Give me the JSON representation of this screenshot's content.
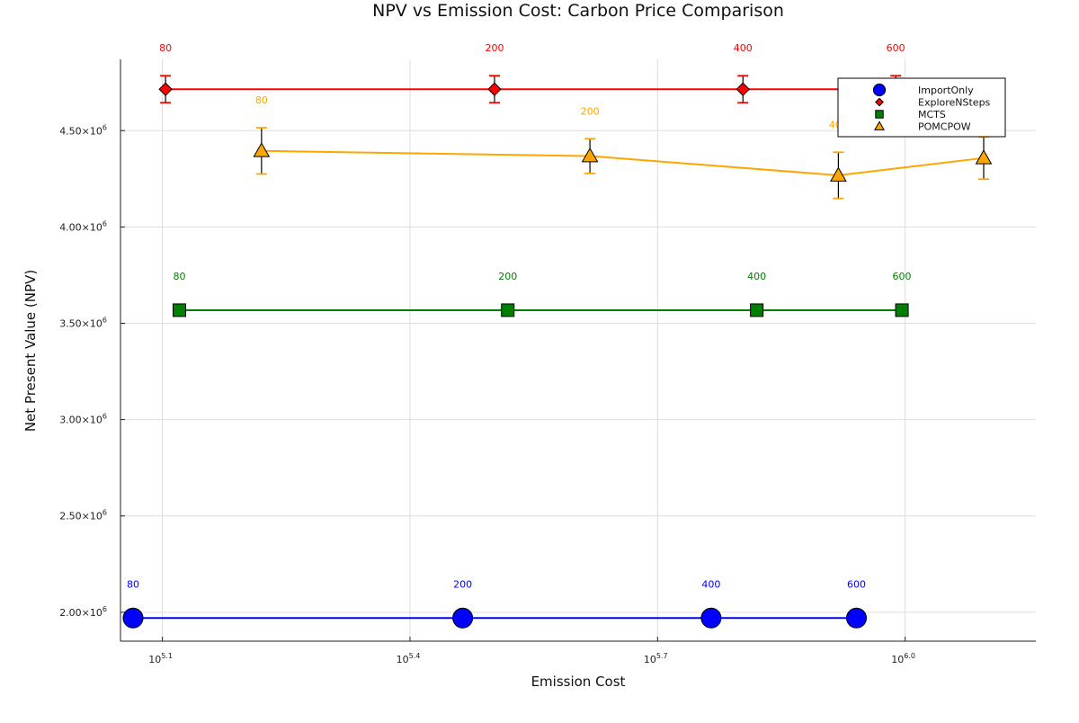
{
  "chart_data": {
    "type": "scatter",
    "title": "NPV vs Emission Cost: Carbon Price Comparison",
    "xlabel": "Emission Cost",
    "ylabel": "Net Present Value (NPV)",
    "x_scale": "log10",
    "xlim": [
      112000,
      1440000
    ],
    "ylim": [
      1850000,
      4870000
    ],
    "x_ticks": [
      {
        "value": 125893,
        "base": "10",
        "exp": "5.1"
      },
      {
        "value": 251189,
        "base": "10",
        "exp": "5.4"
      },
      {
        "value": 501187,
        "base": "10",
        "exp": "5.7"
      },
      {
        "value": 1000000,
        "base": "10",
        "exp": "6.0"
      }
    ],
    "y_ticks": [
      {
        "value": 2000000,
        "mant": "2.00×10",
        "exp": "6"
      },
      {
        "value": 2500000,
        "mant": "2.50×10",
        "exp": "6"
      },
      {
        "value": 3000000,
        "mant": "3.00×10",
        "exp": "6"
      },
      {
        "value": 3500000,
        "mant": "3.50×10",
        "exp": "6"
      },
      {
        "value": 4000000,
        "mant": "4.00×10",
        "exp": "6"
      },
      {
        "value": 4500000,
        "mant": "4.50×10",
        "exp": "6"
      }
    ],
    "grid": true,
    "legend_position": "top-right",
    "series": [
      {
        "name": "ImportOnly",
        "color": "#0000ff",
        "marker": "circle",
        "points": [
          {
            "x": 116000,
            "y": 1970000,
            "err": 0,
            "label": "80"
          },
          {
            "x": 291000,
            "y": 1970000,
            "err": 0,
            "label": "200"
          },
          {
            "x": 582000,
            "y": 1970000,
            "err": 0,
            "label": "400"
          },
          {
            "x": 873000,
            "y": 1970000,
            "err": 0,
            "label": "600"
          }
        ]
      },
      {
        "name": "ExploreNSteps",
        "color": "#ff0000",
        "marker": "diamond",
        "points": [
          {
            "x": 127000,
            "y": 4715000,
            "err": 70000,
            "label": "80"
          },
          {
            "x": 318000,
            "y": 4715000,
            "err": 70000,
            "label": "200"
          },
          {
            "x": 636000,
            "y": 4715000,
            "err": 70000,
            "label": "400"
          },
          {
            "x": 974000,
            "y": 4715000,
            "err": 70000,
            "label": "600"
          }
        ]
      },
      {
        "name": "MCTS",
        "color": "#008000",
        "marker": "square",
        "points": [
          {
            "x": 132000,
            "y": 3568000,
            "err": 0,
            "label": "80"
          },
          {
            "x": 330000,
            "y": 3568000,
            "err": 0,
            "label": "200"
          },
          {
            "x": 661000,
            "y": 3568000,
            "err": 0,
            "label": "400"
          },
          {
            "x": 991000,
            "y": 3568000,
            "err": 0,
            "label": "600"
          }
        ]
      },
      {
        "name": "POMCPOW",
        "color": "#ffa500",
        "marker": "triangle",
        "points": [
          {
            "x": 166000,
            "y": 4395000,
            "err": 120000,
            "label": "80"
          },
          {
            "x": 415000,
            "y": 4368000,
            "err": 90000,
            "label": "200"
          },
          {
            "x": 830000,
            "y": 4268000,
            "err": 120000,
            "label": "400"
          },
          {
            "x": 1245000,
            "y": 4358000,
            "err": 110000,
            "label": "600"
          }
        ]
      }
    ]
  }
}
